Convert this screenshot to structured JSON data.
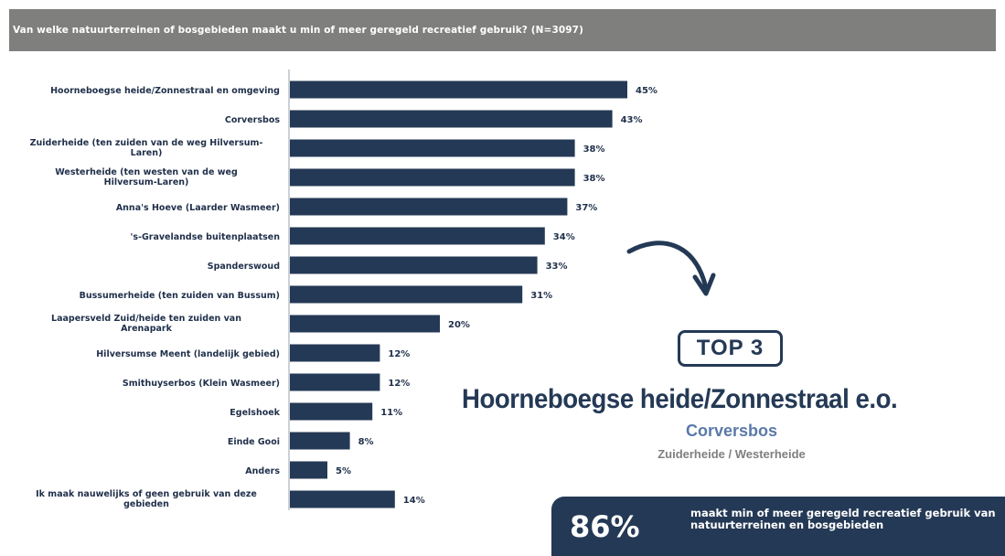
{
  "header": {
    "question": "Van welke natuurterreinen of bosgebieden maakt u min of meer geregeld recreatief gebruik? (N=3097)"
  },
  "chart_data": {
    "type": "bar",
    "orientation": "horizontal",
    "title": "Van welke natuurterreinen of bosgebieden maakt u min of meer geregeld recreatief gebruik? (N=3097)",
    "categories": [
      [
        "Hoorneboegse heide/Zonnestraal en omgeving"
      ],
      [
        "Corversbos"
      ],
      [
        "Zuiderheide (ten zuiden van de weg Hilversum-",
        "Laren)"
      ],
      [
        "Westerheide (ten westen van de weg",
        "Hilversum-Laren)"
      ],
      [
        "Anna's Hoeve (Laarder Wasmeer)"
      ],
      [
        "'s-Gravelandse buitenplaatsen"
      ],
      [
        "Spanderswoud"
      ],
      [
        "Bussumerheide (ten zuiden van Bussum)"
      ],
      [
        "Laapersveld Zuid/heide ten zuiden van",
        "Arenapark"
      ],
      [
        "Hilversumse Meent (landelijk gebied)"
      ],
      [
        "Smithuyserbos (Klein Wasmeer)"
      ],
      [
        "Egelshoek"
      ],
      [
        "Einde Gooi"
      ],
      [
        "Anders"
      ],
      [
        "Ik maak nauwelijks of geen gebruik van deze",
        "gebieden"
      ]
    ],
    "values": [
      45,
      43,
      38,
      38,
      37,
      34,
      33,
      31,
      20,
      12,
      12,
      11,
      8,
      5,
      14
    ],
    "value_labels": [
      "45%",
      "43%",
      "38%",
      "38%",
      "37%",
      "34%",
      "33%",
      "31%",
      "20%",
      "12%",
      "12%",
      "11%",
      "8%",
      "5%",
      "14%"
    ],
    "unit": "%",
    "xlim": [
      0,
      100
    ],
    "grid": false,
    "bar_color": "#243955"
  },
  "callout": {
    "top_badge": "TOP 3",
    "rank1": "Hoorneboegse heide/Zonnestraal e.o.",
    "rank2": "Corversbos",
    "rank3": "Zuiderheide / Westerheide",
    "arrow_icon": "curved-arrow-icon"
  },
  "stat": {
    "value": "86%",
    "text": "maakt min of meer geregeld recreatief gebruik van natuurterreinen en bosgebieden"
  },
  "colors": {
    "navy": "#243955",
    "header_gray": "#7f7f7d",
    "accent_blue": "#5b79a8",
    "muted_gray": "#7f7f7f"
  }
}
